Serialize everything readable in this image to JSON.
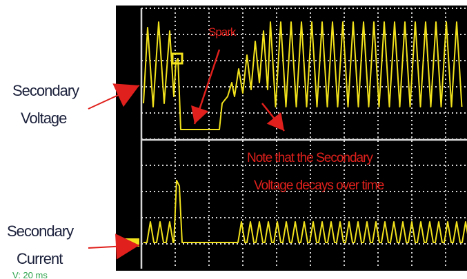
{
  "labels": {
    "secondary_voltage_line1": "Secondary",
    "secondary_voltage_line2": "Voltage",
    "secondary_current_line1": "Secondary",
    "secondary_current_line2": "Current",
    "spark": "Spark",
    "note_line1": "Note that the Secondary",
    "note_line2": "Voltage decays over time",
    "scale_readout": "V: 20 ms"
  },
  "colors": {
    "screen_background": "#000000",
    "trace": "#f2e21c",
    "graticule": "#d8d8d8",
    "annotation_red": "#e0201c",
    "label_text": "#1a1f3a",
    "scale_text": "#2aa34a",
    "page_background": "#ffffff"
  },
  "icons": {
    "voltage_arrow": "red-arrow-right",
    "current_arrow": "red-arrow-right",
    "spark_arrow": "red-arrow-down",
    "decay_arrow": "red-arrow-down-right",
    "current_channel_marker": "yellow-ground-marker"
  }
}
